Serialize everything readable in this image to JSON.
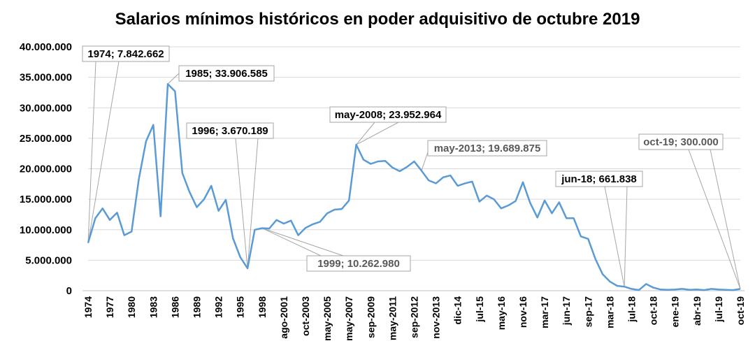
{
  "chart_data": {
    "type": "line",
    "title": "Salarios mínimos históricos en poder adquisitivo de octubre 2019",
    "ylim": [
      0,
      40000000
    ],
    "yticks": [
      0,
      5000000,
      10000000,
      15000000,
      20000000,
      25000000,
      30000000,
      35000000,
      40000000
    ],
    "ytick_labels": [
      "0",
      "5.000.000",
      "10.000.000",
      "15.000.000",
      "20.000.000",
      "25.000.000",
      "30.000.000",
      "35.000.000",
      "40.000.000"
    ],
    "grid": true,
    "legend": "none",
    "line_color": "#5B9BD5",
    "x_tick_labels": [
      "1974",
      "1977",
      "1980",
      "1983",
      "1986",
      "1989",
      "1992",
      "1995",
      "1998",
      "ago-2001",
      "oct-2003",
      "may-2005",
      "may-2007",
      "sep-2009",
      "may-2011",
      "sep-2012",
      "nov-2013",
      "dic-14",
      "jul-15",
      "may-16",
      "nov-16",
      "mar-17",
      "jun-17",
      "sep-17",
      "mar-18",
      "jul-18",
      "oct-18",
      "ene-19",
      "abr-19",
      "jul-19",
      "oct-19"
    ],
    "tick_index": [
      0,
      3,
      6,
      9,
      12,
      15,
      18,
      21,
      24,
      27,
      30,
      33,
      36,
      39,
      42,
      45,
      48,
      51,
      54,
      57,
      60,
      63,
      66,
      69,
      72,
      75,
      78,
      81,
      84,
      87,
      90
    ],
    "values": [
      7842662,
      11900000,
      13500000,
      11600000,
      12800000,
      9100000,
      9700000,
      18300000,
      24500000,
      27200000,
      12200000,
      33906585,
      32700000,
      19300000,
      16200000,
      13700000,
      15000000,
      17200000,
      13100000,
      14900000,
      8600000,
      5500000,
      3670189,
      10000000,
      10262980,
      10200000,
      11600000,
      11000000,
      11500000,
      9100000,
      10300000,
      10900000,
      11300000,
      12700000,
      13300000,
      13400000,
      14800000,
      23952964,
      21500000,
      20800000,
      21200000,
      21300000,
      20200000,
      19600000,
      20300000,
      21200000,
      19689875,
      18100000,
      17600000,
      18600000,
      18900000,
      17200000,
      17600000,
      17900000,
      14600000,
      15600000,
      15000000,
      13500000,
      14000000,
      14700000,
      17800000,
      14400000,
      12000000,
      14800000,
      12700000,
      14500000,
      11900000,
      11900000,
      8900000,
      8500000,
      5200000,
      2700000,
      1500000,
      800000,
      661838,
      300000,
      100000,
      1100000,
      500000,
      200000,
      150000,
      200000,
      300000,
      150000,
      200000,
      100000,
      300000,
      200000,
      150000,
      100000,
      300000
    ],
    "annotations": [
      {
        "label": "1974; 7.842.662",
        "index": 0,
        "style": "bold"
      },
      {
        "label": "1985; 33.906.585",
        "index": 11,
        "style": "bold"
      },
      {
        "label": "1996; 3.670.189",
        "index": 22,
        "style": "bold"
      },
      {
        "label": "1999; 10.262.980",
        "index": 24,
        "style": "grey"
      },
      {
        "label": "may-2008; 23.952.964",
        "index": 37,
        "style": "bold"
      },
      {
        "label": "may-2013; 19.689.875",
        "index": 46,
        "style": "grey"
      },
      {
        "label": "jun-18; 661.838",
        "index": 74,
        "style": "bold"
      },
      {
        "label": "oct-19; 300.000",
        "index": 90,
        "style": "grey"
      }
    ]
  }
}
